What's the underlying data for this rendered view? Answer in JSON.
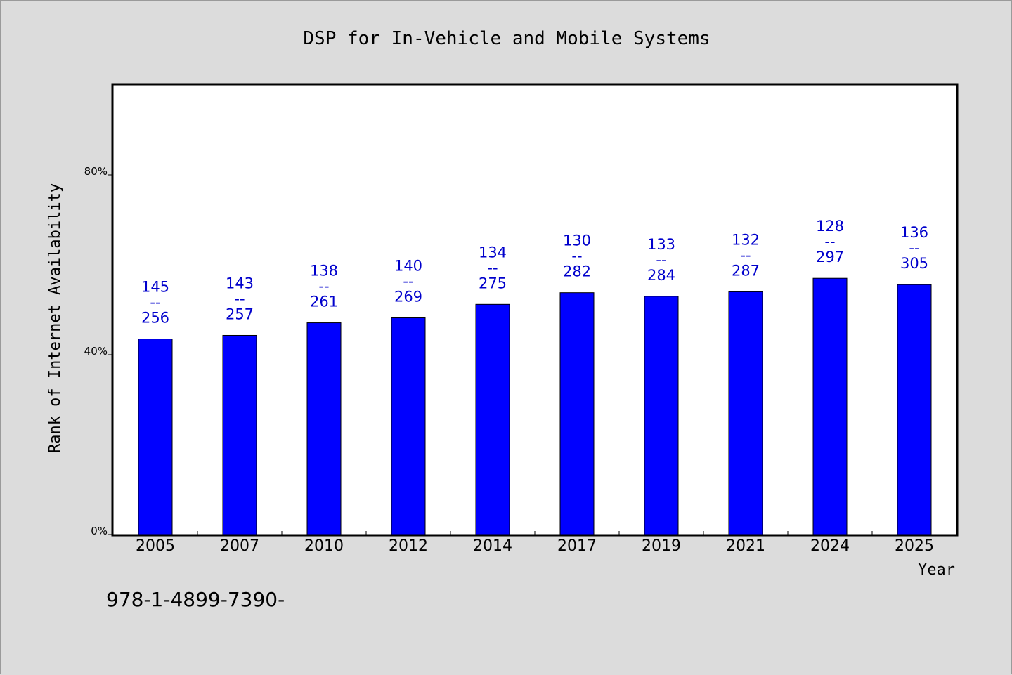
{
  "chart_data": {
    "type": "bar",
    "title": "DSP for In-Vehicle and Mobile Systems",
    "xlabel": "Year",
    "ylabel": "Rank of Internet Availability",
    "categories": [
      "2005",
      "2007",
      "2010",
      "2012",
      "2014",
      "2017",
      "2019",
      "2021",
      "2024",
      "2025"
    ],
    "values": [
      43.5,
      44.3,
      47.1,
      48.2,
      51.2,
      53.8,
      53.0,
      54.0,
      57.0,
      55.6
    ],
    "ranks": [
      "145",
      "143",
      "138",
      "140",
      "134",
      "130",
      "133",
      "132",
      "128",
      "136"
    ],
    "totals": [
      "256",
      "257",
      "261",
      "269",
      "275",
      "282",
      "284",
      "287",
      "297",
      "305"
    ],
    "label_separator": "--",
    "ylim": [
      0,
      100
    ],
    "yticks": [
      {
        "value": 0,
        "label": "0%"
      },
      {
        "value": 40,
        "label": "40%"
      },
      {
        "value": 80,
        "label": "80%"
      }
    ],
    "bar_color": "#0000ff",
    "label_color": "#0000cc",
    "grid": false,
    "legend": "none"
  },
  "footer": {
    "text": "978-1-4899-7390-"
  }
}
